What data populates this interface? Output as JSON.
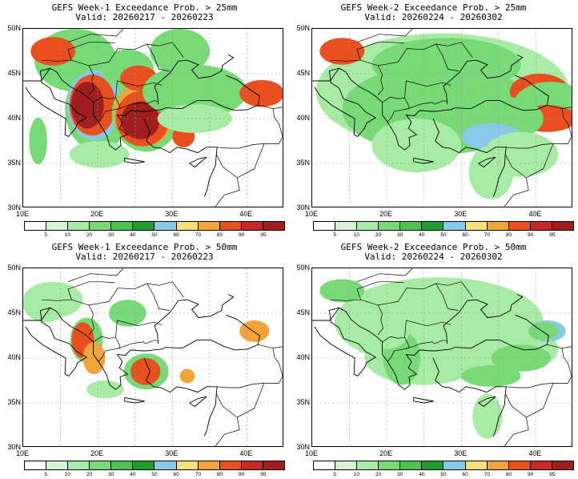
{
  "colors": {
    "scale": [
      "#ffffff",
      "#d6f5d6",
      "#a8eba4",
      "#78d977",
      "#4cc24f",
      "#1f9e2f",
      "#88c9e8",
      "#f7e07a",
      "#f2a33a",
      "#e8511f",
      "#c82828",
      "#a11e1e"
    ],
    "land_outline": "#000000",
    "grid": "#9a9a9a"
  },
  "colorbar_labels": [
    "5",
    "10",
    "20",
    "30",
    "40",
    "50",
    "60",
    "70",
    "80",
    "90",
    "95"
  ],
  "lat_labels": [
    "50N",
    "45N",
    "40N",
    "35N",
    "30N"
  ],
  "lon_labels": [
    "10E",
    "20E",
    "30E",
    "40E"
  ],
  "panels": [
    {
      "id": "w1-25",
      "title": "GEFS Week-1 Exceedance Prob. > 25mm",
      "valid": "Valid: 20260217 - 20260223"
    },
    {
      "id": "w2-25",
      "title": "GEFS Week-2 Exceedance Prob. > 25mm",
      "valid": "Valid: 20260224 - 20260302"
    },
    {
      "id": "w1-50",
      "title": "GEFS Week-1 Exceedance Prob. > 50mm",
      "valid": "Valid: 20260217 - 20260223"
    },
    {
      "id": "w2-50",
      "title": "GEFS Week-2 Exceedance Prob. > 50mm",
      "valid": "Valid: 20260224 - 20260302"
    }
  ]
}
